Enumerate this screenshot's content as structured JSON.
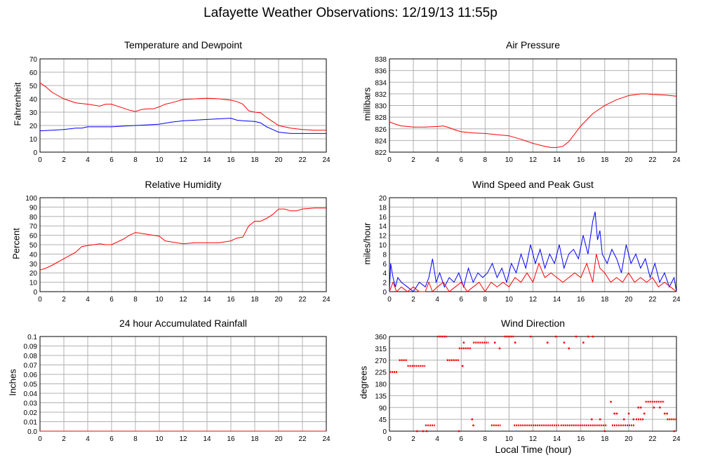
{
  "title": "Lafayette Weather Observations: 12/19/13 11:55p",
  "x_axis_label": "Local Time (hour)",
  "colors": {
    "red": "#ff0000",
    "blue": "#0000ff",
    "grid": "#b0b0b0"
  },
  "chart_data": [
    {
      "id": "temp",
      "type": "line",
      "title": "Temperature and Dewpoint",
      "ylabel": "Fahrenheit",
      "xlim": [
        0,
        24
      ],
      "ylim": [
        0,
        70
      ],
      "yticks": [
        0,
        10,
        20,
        30,
        40,
        50,
        60,
        70
      ],
      "xticks": [
        0,
        2,
        4,
        6,
        8,
        10,
        12,
        14,
        16,
        18,
        20,
        22,
        24
      ],
      "grid": true,
      "series": [
        {
          "color": "#ff0000",
          "x": [
            0,
            0.5,
            1,
            2,
            3,
            4,
            5,
            5.5,
            6,
            7,
            7.5,
            8,
            8.5,
            9,
            9.5,
            10,
            10.5,
            11,
            12,
            13,
            14,
            15,
            16,
            16.5,
            17,
            17.5,
            18,
            18.5,
            19,
            19.5,
            20,
            21,
            22,
            23,
            24
          ],
          "y": [
            52,
            49,
            45,
            40,
            37,
            36,
            34.5,
            36,
            36,
            33,
            31.5,
            30.5,
            32,
            32.5,
            32.5,
            34,
            36,
            37,
            39.5,
            40,
            40.5,
            40,
            39,
            38,
            36,
            31,
            30,
            29.5,
            26,
            23,
            20,
            18,
            17,
            16.5,
            16.5
          ]
        },
        {
          "color": "#0000ff",
          "x": [
            0,
            1,
            2,
            3,
            3.5,
            4,
            5,
            6,
            7,
            8,
            9,
            10,
            11,
            12,
            13,
            14,
            15,
            16,
            16.5,
            17,
            18,
            18.5,
            19,
            19.5,
            20,
            21,
            22,
            23,
            24
          ],
          "y": [
            16,
            16.5,
            17,
            18,
            18,
            19,
            19,
            19,
            19.5,
            20,
            20.5,
            21,
            22.5,
            23.5,
            24,
            24.5,
            25,
            25.5,
            24,
            23.5,
            23,
            22,
            19,
            17,
            15,
            14,
            14,
            14,
            14
          ]
        }
      ]
    },
    {
      "id": "pressure",
      "type": "line",
      "title": "Air Pressure",
      "ylabel": "millibars",
      "xlim": [
        0,
        24
      ],
      "ylim": [
        822,
        838
      ],
      "yticks": [
        822,
        824,
        826,
        828,
        830,
        832,
        834,
        836,
        838
      ],
      "xticks": [
        0,
        2,
        4,
        6,
        8,
        10,
        12,
        14,
        16,
        18,
        20,
        22,
        24
      ],
      "grid": true,
      "series": [
        {
          "color": "#ff0000",
          "x": [
            0,
            0.5,
            1,
            1.5,
            2,
            3,
            4,
            4.5,
            5,
            5.5,
            6,
            7,
            8,
            9,
            10,
            11,
            12,
            13,
            13.5,
            14,
            14.5,
            15,
            16,
            17,
            18,
            18.5,
            19,
            20,
            21,
            21.5,
            22,
            23,
            24
          ],
          "y": [
            827.2,
            826.8,
            826.5,
            826.4,
            826.3,
            826.3,
            826.4,
            826.5,
            826.2,
            825.8,
            825.5,
            825.3,
            825.2,
            825,
            824.8,
            824.2,
            823.5,
            823,
            822.8,
            822.8,
            823,
            823.8,
            826.5,
            828.6,
            830,
            830.5,
            831,
            831.7,
            832,
            832,
            831.9,
            831.8,
            831.6
          ]
        }
      ]
    },
    {
      "id": "humidity",
      "type": "line",
      "title": "Relative Humidity",
      "ylabel": "Percent",
      "xlim": [
        0,
        24
      ],
      "ylim": [
        0,
        100
      ],
      "yticks": [
        0,
        10,
        20,
        30,
        40,
        50,
        60,
        70,
        80,
        90,
        100
      ],
      "xticks": [
        0,
        2,
        4,
        6,
        8,
        10,
        12,
        14,
        16,
        18,
        20,
        22,
        24
      ],
      "grid": true,
      "series": [
        {
          "color": "#ff0000",
          "x": [
            0,
            0.5,
            1,
            2,
            3,
            3.5,
            4,
            5,
            5.5,
            6,
            7,
            7.5,
            8,
            8.5,
            9,
            9.5,
            10,
            10.5,
            11,
            12,
            13,
            14,
            15,
            16,
            16.5,
            17,
            17.5,
            18,
            18.5,
            19,
            19.5,
            20,
            20.5,
            21,
            21.5,
            22,
            23,
            24
          ],
          "y": [
            23,
            25,
            28,
            35,
            42,
            48,
            49,
            51,
            50,
            50,
            56,
            60,
            63,
            62,
            61,
            60,
            59,
            54,
            53,
            51,
            52,
            52,
            52,
            54,
            57,
            58,
            70,
            75,
            75,
            78,
            82,
            88,
            88,
            86,
            86,
            88,
            89,
            89
          ]
        }
      ]
    },
    {
      "id": "wind",
      "type": "line",
      "title": "Wind Speed and Peak Gust",
      "ylabel": "miles/hour",
      "xlim": [
        0,
        24
      ],
      "ylim": [
        0,
        20
      ],
      "yticks": [
        0,
        2,
        4,
        6,
        8,
        10,
        12,
        14,
        16,
        18,
        20
      ],
      "xticks": [
        0,
        2,
        4,
        6,
        8,
        10,
        12,
        14,
        16,
        18,
        20,
        22,
        24
      ],
      "grid": true,
      "series": [
        {
          "color": "#0000ff",
          "x": [
            0,
            0.1,
            0.3,
            0.5,
            0.7,
            1,
            1.5,
            2,
            2.5,
            3,
            3.3,
            3.6,
            3.9,
            4.2,
            4.6,
            5,
            5.4,
            5.8,
            6.2,
            6.6,
            7,
            7.4,
            7.8,
            8.2,
            8.6,
            9,
            9.4,
            9.8,
            10.2,
            10.6,
            11,
            11.4,
            11.8,
            12.2,
            12.6,
            13,
            13.4,
            13.8,
            14.2,
            14.6,
            15,
            15.4,
            15.8,
            16.2,
            16.6,
            17,
            17.2,
            17.4,
            17.6,
            17.8,
            18.2,
            18.6,
            19,
            19.4,
            19.8,
            20.2,
            20.6,
            21,
            21.4,
            21.8,
            22.2,
            22.6,
            23,
            23.4,
            23.8,
            24
          ],
          "y": [
            0,
            6,
            3,
            1,
            3,
            2,
            1,
            0,
            2,
            1,
            3,
            7,
            2,
            4,
            1,
            3,
            2,
            4,
            1,
            5,
            2,
            4,
            3,
            4,
            6,
            3,
            5,
            2,
            6,
            4,
            8,
            5,
            10,
            6,
            9,
            5,
            8,
            6,
            10,
            5,
            8,
            9,
            7,
            12,
            8,
            15,
            17,
            11,
            13,
            8,
            6,
            9,
            7,
            4,
            10,
            6,
            8,
            5,
            7,
            3,
            6,
            2,
            4,
            1,
            3,
            0
          ]
        },
        {
          "color": "#ff0000",
          "x": [
            0,
            0.3,
            0.6,
            1,
            1.5,
            2,
            2.5,
            3,
            3.3,
            3.6,
            4,
            4.5,
            5,
            5.5,
            6,
            6.5,
            7,
            7.5,
            8,
            8.5,
            9,
            9.5,
            10,
            10.5,
            11,
            11.5,
            12,
            12.5,
            13,
            13.5,
            14,
            14.5,
            15,
            15.5,
            16,
            16.5,
            17,
            17.3,
            17.6,
            18,
            18.5,
            19,
            19.5,
            20,
            20.5,
            21,
            21.5,
            22,
            22.5,
            23,
            23.5,
            24
          ],
          "y": [
            0,
            2,
            0,
            1,
            0,
            1,
            0,
            0,
            2,
            0,
            1,
            2,
            0,
            1,
            2,
            0,
            1,
            2,
            0,
            2,
            1,
            2,
            1,
            3,
            2,
            4,
            2,
            6,
            3,
            4,
            3,
            2,
            3,
            4,
            3,
            6,
            2,
            8,
            5,
            4,
            2,
            3,
            2,
            4,
            2,
            3,
            2,
            3,
            1,
            2,
            1,
            0
          ]
        }
      ]
    },
    {
      "id": "rain",
      "type": "line",
      "title": "24 hour Accumulated Rainfall",
      "ylabel": "Inches",
      "xlim": [
        0,
        24
      ],
      "ylim": [
        0,
        0.1
      ],
      "yticks": [
        0.0,
        0.01,
        0.02,
        0.03,
        0.04,
        0.05,
        0.06,
        0.07,
        0.08,
        0.09,
        0.1
      ],
      "ytick_labels": [
        "0.0",
        "0.01",
        "0.02",
        "0.03",
        "0.04",
        "0.05",
        "0.06",
        "0.07",
        "0.08",
        "0.09",
        "0.1"
      ],
      "xticks": [
        0,
        2,
        4,
        6,
        8,
        10,
        12,
        14,
        16,
        18,
        20,
        22,
        24
      ],
      "grid": true,
      "series": [
        {
          "color": "#ff0000",
          "x": [
            0,
            24
          ],
          "y": [
            0,
            0
          ]
        }
      ]
    },
    {
      "id": "direction",
      "type": "scatter",
      "title": "Wind Direction",
      "ylabel": "degrees",
      "xlim": [
        0,
        24
      ],
      "ylim": [
        0,
        360
      ],
      "yticks": [
        0,
        45,
        90,
        135,
        180,
        225,
        270,
        315,
        360
      ],
      "xticks": [
        0,
        2,
        4,
        6,
        8,
        10,
        12,
        14,
        16,
        18,
        20,
        22,
        24
      ],
      "grid": true,
      "segments": [
        {
          "x": [
            0.0,
            0.7
          ],
          "y": 225
        },
        {
          "x": [
            0.8,
            1.5
          ],
          "y": 270
        },
        {
          "x": [
            1.5,
            3.0
          ],
          "y": 248
        },
        {
          "x": [
            3.0,
            3.8
          ],
          "y": 22
        },
        {
          "x": [
            4.0,
            4.8
          ],
          "y": 360
        },
        {
          "x": [
            4.8,
            5.8
          ],
          "y": 270
        },
        {
          "x": [
            5.8,
            6.8
          ],
          "y": 315
        },
        {
          "x": [
            7.0,
            8.3
          ],
          "y": 337
        },
        {
          "x": [
            8.5,
            9.3
          ],
          "y": 22
        },
        {
          "x": [
            9.6,
            10.4
          ],
          "y": 360
        },
        {
          "x": [
            10.4,
            14.2
          ],
          "y": 22
        },
        {
          "x": [
            14.3,
            18.2
          ],
          "y": 22
        },
        {
          "x": [
            18.6,
            20.5
          ],
          "y": 22
        },
        {
          "x": [
            20.6,
            21.3
          ],
          "y": 45
        },
        {
          "x": [
            21.4,
            23.0
          ],
          "y": 112
        },
        {
          "x": [
            23.2,
            24.0
          ],
          "y": 45
        }
      ],
      "points": [
        {
          "x": 2.3,
          "y": 0
        },
        {
          "x": 2.8,
          "y": 0
        },
        {
          "x": 3.1,
          "y": 0
        },
        {
          "x": 5.8,
          "y": 0
        },
        {
          "x": 6.1,
          "y": 248
        },
        {
          "x": 6.2,
          "y": 337
        },
        {
          "x": 6.9,
          "y": 45
        },
        {
          "x": 7.0,
          "y": 22
        },
        {
          "x": 8.8,
          "y": 337
        },
        {
          "x": 9.2,
          "y": 315
        },
        {
          "x": 10.5,
          "y": 337
        },
        {
          "x": 11.8,
          "y": 360
        },
        {
          "x": 13.2,
          "y": 337
        },
        {
          "x": 13.9,
          "y": 360
        },
        {
          "x": 14.6,
          "y": 337
        },
        {
          "x": 15.0,
          "y": 315
        },
        {
          "x": 15.6,
          "y": 360
        },
        {
          "x": 16.2,
          "y": 337
        },
        {
          "x": 16.6,
          "y": 360
        },
        {
          "x": 17.0,
          "y": 360
        },
        {
          "x": 16.9,
          "y": 45
        },
        {
          "x": 17.6,
          "y": 45
        },
        {
          "x": 18.0,
          "y": 0
        },
        {
          "x": 18.5,
          "y": 112
        },
        {
          "x": 18.8,
          "y": 67
        },
        {
          "x": 19.0,
          "y": 67
        },
        {
          "x": 19.6,
          "y": 45
        },
        {
          "x": 20.0,
          "y": 67
        },
        {
          "x": 20.4,
          "y": 45
        },
        {
          "x": 20.8,
          "y": 90
        },
        {
          "x": 21.0,
          "y": 90
        },
        {
          "x": 21.3,
          "y": 67
        },
        {
          "x": 22.1,
          "y": 90
        },
        {
          "x": 22.6,
          "y": 90
        },
        {
          "x": 23.0,
          "y": 67
        },
        {
          "x": 23.2,
          "y": 67
        },
        {
          "x": 23.8,
          "y": 0
        }
      ]
    }
  ]
}
